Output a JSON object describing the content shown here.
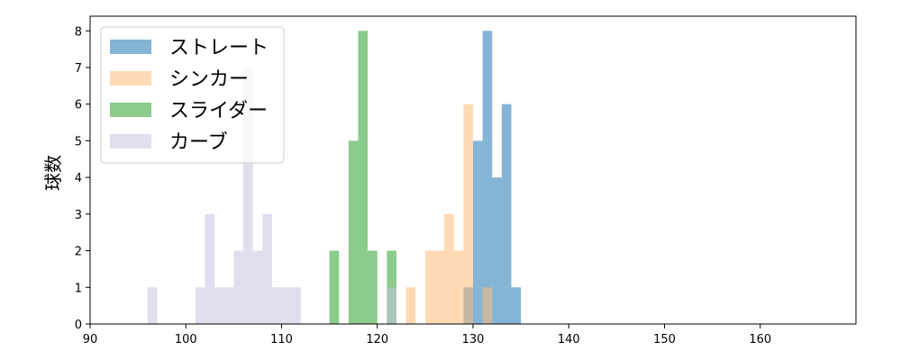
{
  "chart_data": {
    "type": "bar",
    "subtype": "overlapping-histogram",
    "title": "",
    "xlabel": "",
    "ylabel": "球数",
    "xlim": [
      90,
      170
    ],
    "ylim": [
      0,
      8.4
    ],
    "xticks": [
      90,
      100,
      110,
      120,
      130,
      140,
      150,
      160
    ],
    "yticks": [
      0,
      1,
      2,
      3,
      4,
      5,
      6,
      7,
      8
    ],
    "grid": false,
    "legend_position": "top-left",
    "bar_alpha": 0.55,
    "series": [
      {
        "name": "ストレート",
        "color": "#1f77b4",
        "bins": [
          {
            "x0": 129.0,
            "x1": 130.0,
            "count": 1
          },
          {
            "x0": 130.0,
            "x1": 131.0,
            "count": 5
          },
          {
            "x0": 131.0,
            "x1": 132.0,
            "count": 8
          },
          {
            "x0": 132.0,
            "x1": 133.0,
            "count": 4
          },
          {
            "x0": 133.0,
            "x1": 134.0,
            "count": 6
          },
          {
            "x0": 134.0,
            "x1": 135.0,
            "count": 1
          }
        ]
      },
      {
        "name": "シンカー",
        "color": "#ffbb78",
        "bins": [
          {
            "x0": 123.0,
            "x1": 124.0,
            "count": 1
          },
          {
            "x0": 125.0,
            "x1": 126.0,
            "count": 2
          },
          {
            "x0": 126.0,
            "x1": 127.0,
            "count": 2
          },
          {
            "x0": 127.0,
            "x1": 128.0,
            "count": 3
          },
          {
            "x0": 128.0,
            "x1": 129.0,
            "count": 2
          },
          {
            "x0": 129.0,
            "x1": 130.0,
            "count": 6
          },
          {
            "x0": 131.0,
            "x1": 132.0,
            "count": 1
          }
        ]
      },
      {
        "name": "スライダー",
        "color": "#2ca02c",
        "bins": [
          {
            "x0": 115.0,
            "x1": 116.0,
            "count": 2
          },
          {
            "x0": 117.0,
            "x1": 118.0,
            "count": 5
          },
          {
            "x0": 118.0,
            "x1": 119.0,
            "count": 8
          },
          {
            "x0": 119.0,
            "x1": 120.0,
            "count": 2
          },
          {
            "x0": 121.0,
            "x1": 122.0,
            "count": 2
          }
        ]
      },
      {
        "name": "カーブ",
        "color": "#c5c5e0",
        "bins": [
          {
            "x0": 96.0,
            "x1": 97.0,
            "count": 1
          },
          {
            "x0": 101.0,
            "x1": 102.0,
            "count": 1
          },
          {
            "x0": 102.0,
            "x1": 103.0,
            "count": 3
          },
          {
            "x0": 103.0,
            "x1": 104.0,
            "count": 1
          },
          {
            "x0": 104.0,
            "x1": 105.0,
            "count": 1
          },
          {
            "x0": 105.0,
            "x1": 106.0,
            "count": 2
          },
          {
            "x0": 106.0,
            "x1": 107.0,
            "count": 7
          },
          {
            "x0": 107.0,
            "x1": 108.0,
            "count": 2
          },
          {
            "x0": 108.0,
            "x1": 109.0,
            "count": 3
          },
          {
            "x0": 109.0,
            "x1": 110.0,
            "count": 1
          },
          {
            "x0": 110.0,
            "x1": 111.0,
            "count": 1
          },
          {
            "x0": 111.0,
            "x1": 112.0,
            "count": 1
          },
          {
            "x0": 121.0,
            "x1": 122.0,
            "count": 1
          }
        ]
      }
    ]
  }
}
